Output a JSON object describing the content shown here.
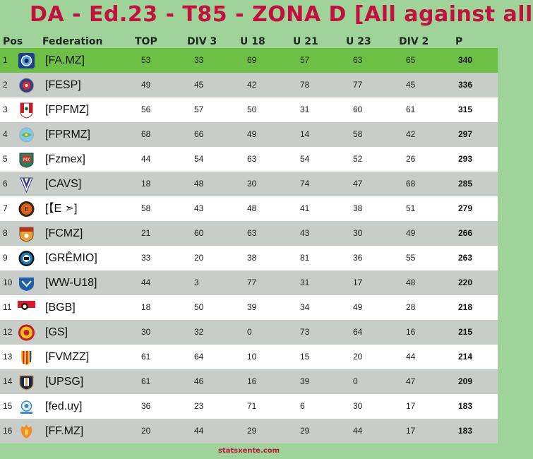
{
  "title": "DA - Ed.23 - T85 - ZONA D  [All against all",
  "footer": "statsxente.com",
  "columns": {
    "pos": "Pos",
    "federation": "Federation",
    "top": "TOP",
    "div3": "DIV 3",
    "u18": "U 18",
    "u21": "U 21",
    "u23": "U 23",
    "div2": "DIV 2",
    "p": "P"
  },
  "colors": {
    "title": "#c0123c",
    "background": "#9fd39a",
    "leader_row": "#6dbf45",
    "row_gray": "#c9cdc9",
    "row_white": "#ffffff"
  },
  "rows": [
    {
      "pos": "1",
      "name": "[FA.MZ]",
      "top": "53",
      "div3": "33",
      "u18": "69",
      "u21": "57",
      "u23": "63",
      "div2": "65",
      "p": "340",
      "crest": "fa-mz-crest-icon"
    },
    {
      "pos": "2",
      "name": "[FESP]",
      "top": "49",
      "div3": "45",
      "u18": "42",
      "u21": "78",
      "u23": "77",
      "div2": "45",
      "p": "336",
      "crest": "fesp-crest-icon"
    },
    {
      "pos": "3",
      "name": "[FPFMZ]",
      "top": "56",
      "div3": "57",
      "u18": "50",
      "u21": "31",
      "u23": "60",
      "div2": "61",
      "p": "315",
      "crest": "fpfmz-crest-icon"
    },
    {
      "pos": "4",
      "name": "[FPRMZ]",
      "top": "68",
      "div3": "66",
      "u18": "49",
      "u21": "14",
      "u23": "58",
      "div2": "42",
      "p": "297",
      "crest": "fprmz-crest-icon"
    },
    {
      "pos": "5",
      "name": "[Fzmex]",
      "top": "44",
      "div3": "54",
      "u18": "63",
      "u21": "54",
      "u23": "52",
      "div2": "26",
      "p": "293",
      "crest": "fzmex-crest-icon"
    },
    {
      "pos": "6",
      "name": "[CAVS]",
      "top": "18",
      "div3": "48",
      "u18": "30",
      "u21": "74",
      "u23": "47",
      "div2": "68",
      "p": "285",
      "crest": "cavs-crest-icon"
    },
    {
      "pos": "7",
      "name": "[【E ➣]",
      "top": "58",
      "div3": "43",
      "u18": "48",
      "u21": "41",
      "u23": "38",
      "div2": "51",
      "p": "279",
      "crest": "e-crest-icon"
    },
    {
      "pos": "8",
      "name": "[FCMZ]",
      "top": "21",
      "div3": "60",
      "u18": "63",
      "u21": "43",
      "u23": "30",
      "div2": "49",
      "p": "266",
      "crest": "fcmz-crest-icon"
    },
    {
      "pos": "9",
      "name": "[GRÊMIO]",
      "top": "33",
      "div3": "20",
      "u18": "38",
      "u21": "81",
      "u23": "36",
      "div2": "55",
      "p": "263",
      "crest": "gremio-crest-icon"
    },
    {
      "pos": "10",
      "name": "[WW-U18]",
      "top": "44",
      "div3": "3",
      "u18": "77",
      "u21": "31",
      "u23": "17",
      "div2": "48",
      "p": "220",
      "crest": "ww-u18-crest-icon"
    },
    {
      "pos": "11",
      "name": "[BGB]",
      "top": "18",
      "div3": "50",
      "u18": "39",
      "u21": "34",
      "u23": "49",
      "div2": "28",
      "p": "218",
      "crest": "bgb-crest-icon"
    },
    {
      "pos": "12",
      "name": "[GS]",
      "top": "30",
      "div3": "32",
      "u18": "0",
      "u21": "73",
      "u23": "64",
      "div2": "16",
      "p": "215",
      "crest": "gs-crest-icon"
    },
    {
      "pos": "13",
      "name": "[FVMZZ]",
      "top": "61",
      "div3": "64",
      "u18": "10",
      "u21": "15",
      "u23": "20",
      "div2": "44",
      "p": "214",
      "crest": "fvmzz-crest-icon"
    },
    {
      "pos": "14",
      "name": "[UPSG]",
      "top": "61",
      "div3": "46",
      "u18": "16",
      "u21": "39",
      "u23": "0",
      "div2": "47",
      "p": "209",
      "crest": "upsg-crest-icon"
    },
    {
      "pos": "15",
      "name": "[fed.uy]",
      "top": "36",
      "div3": "23",
      "u18": "71",
      "u21": "6",
      "u23": "30",
      "div2": "17",
      "p": "183",
      "crest": "fed-uy-crest-icon"
    },
    {
      "pos": "16",
      "name": "[FF.MZ]",
      "top": "20",
      "div3": "44",
      "u18": "29",
      "u21": "29",
      "u23": "44",
      "div2": "17",
      "p": "183",
      "crest": "ff-mz-crest-icon"
    }
  ]
}
